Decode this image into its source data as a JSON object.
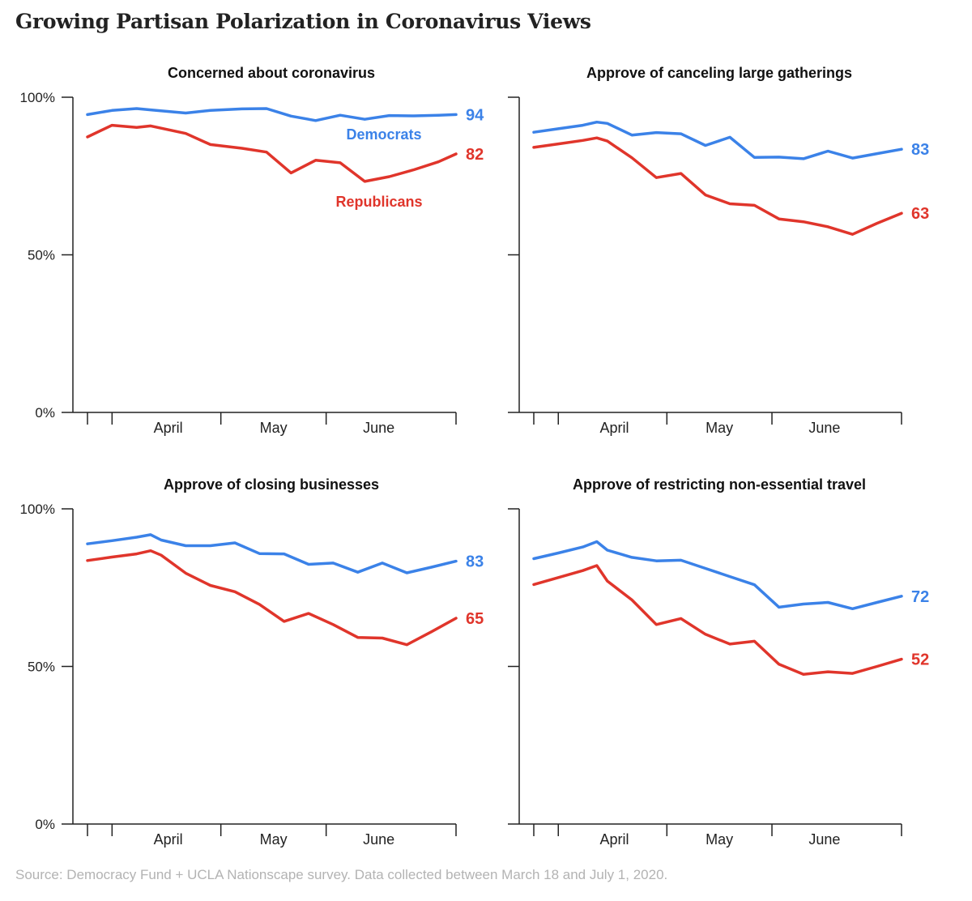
{
  "page": {
    "title": "Growing Partisan Polarization in Coronavirus Views",
    "source": "Source: Democracy Fund + UCLA Nationscape survey. Data collected between March 18 and July 1, 2020."
  },
  "colors": {
    "democrats": "#3b82e8",
    "republicans": "#e0352b",
    "axis": "#222222"
  },
  "chart_data": [
    {
      "type": "line",
      "title": "Concerned about coronavirus",
      "ylim": [
        0,
        100
      ],
      "y_ticks": [
        "0%",
        "50%",
        "100%"
      ],
      "x_ticks": [
        "April",
        "May",
        "June"
      ],
      "xlim": [
        "2020-03-18",
        "2020-07-01"
      ],
      "legend": "inline labels",
      "grid": false,
      "series_label_text": [
        "Democrats",
        "Republicans"
      ],
      "series": [
        {
          "name": "Democrats",
          "end_label": "94",
          "x": [
            "2020-03-18",
            "2020-03-25",
            "2020-04-01",
            "2020-04-05",
            "2020-04-15",
            "2020-04-22",
            "2020-05-01",
            "2020-05-08",
            "2020-05-15",
            "2020-05-22",
            "2020-05-29",
            "2020-06-05",
            "2020-06-12",
            "2020-06-19",
            "2020-06-26",
            "2020-07-01"
          ],
          "y": [
            94.5,
            95.8,
            96.4,
            96.0,
            95.0,
            95.8,
            96.3,
            96.4,
            94.0,
            92.6,
            94.3,
            93.0,
            94.2,
            94.1,
            94.3,
            94.5
          ]
        },
        {
          "name": "Republicans",
          "end_label": "82",
          "x": [
            "2020-03-18",
            "2020-03-25",
            "2020-04-01",
            "2020-04-05",
            "2020-04-15",
            "2020-04-22",
            "2020-05-01",
            "2020-05-08",
            "2020-05-15",
            "2020-05-22",
            "2020-05-29",
            "2020-06-05",
            "2020-06-12",
            "2020-06-19",
            "2020-06-26",
            "2020-07-01"
          ],
          "y": [
            87.4,
            91.1,
            90.4,
            90.9,
            88.5,
            85.0,
            83.8,
            82.6,
            76.0,
            80.0,
            79.2,
            73.3,
            74.8,
            77.0,
            79.5,
            82.0
          ]
        }
      ]
    },
    {
      "type": "line",
      "title": "Approve of canceling large gatherings",
      "ylim": [
        0,
        100
      ],
      "y_ticks": [
        "0%",
        "50%",
        "100%"
      ],
      "x_ticks": [
        "April",
        "May",
        "June"
      ],
      "xlim": [
        "2020-03-18",
        "2020-07-01"
      ],
      "legend": "none",
      "grid": false,
      "series": [
        {
          "name": "Democrats",
          "end_label": "83",
          "x": [
            "2020-03-18",
            "2020-03-25",
            "2020-04-01",
            "2020-04-05",
            "2020-04-08",
            "2020-04-15",
            "2020-04-22",
            "2020-04-29",
            "2020-05-06",
            "2020-05-13",
            "2020-05-20",
            "2020-05-27",
            "2020-06-03",
            "2020-06-10",
            "2020-06-17",
            "2020-06-24",
            "2020-07-01"
          ],
          "y": [
            88.9,
            90.0,
            91.1,
            92.1,
            91.7,
            88.0,
            88.8,
            88.4,
            84.7,
            87.3,
            80.9,
            81.0,
            80.5,
            82.9,
            80.7,
            82.1,
            83.5
          ]
        },
        {
          "name": "Republicans",
          "end_label": "63",
          "x": [
            "2020-03-18",
            "2020-03-25",
            "2020-04-01",
            "2020-04-05",
            "2020-04-08",
            "2020-04-15",
            "2020-04-22",
            "2020-04-29",
            "2020-05-06",
            "2020-05-13",
            "2020-05-20",
            "2020-05-27",
            "2020-06-03",
            "2020-06-10",
            "2020-06-17",
            "2020-06-24",
            "2020-07-01"
          ],
          "y": [
            84.1,
            85.2,
            86.3,
            87.1,
            86.1,
            80.8,
            74.5,
            75.8,
            69.0,
            66.2,
            65.7,
            61.4,
            60.5,
            58.9,
            56.5,
            60.0,
            63.2
          ]
        }
      ]
    },
    {
      "type": "line",
      "title": "Approve of closing businesses",
      "ylim": [
        0,
        100
      ],
      "y_ticks": [
        "0%",
        "50%",
        "100%"
      ],
      "x_ticks": [
        "April",
        "May",
        "June"
      ],
      "xlim": [
        "2020-03-18",
        "2020-07-01"
      ],
      "legend": "none",
      "grid": false,
      "series": [
        {
          "name": "Democrats",
          "end_label": "83",
          "x": [
            "2020-03-18",
            "2020-03-25",
            "2020-04-01",
            "2020-04-05",
            "2020-04-08",
            "2020-04-15",
            "2020-04-22",
            "2020-04-29",
            "2020-05-06",
            "2020-05-13",
            "2020-05-20",
            "2020-05-27",
            "2020-06-03",
            "2020-06-10",
            "2020-06-17",
            "2020-06-24",
            "2020-07-01"
          ],
          "y": [
            88.9,
            89.9,
            91.0,
            91.8,
            90.1,
            88.3,
            88.3,
            89.2,
            85.8,
            85.7,
            82.4,
            82.8,
            79.9,
            82.8,
            79.7,
            81.5,
            83.4
          ]
        },
        {
          "name": "Republicans",
          "end_label": "65",
          "x": [
            "2020-03-18",
            "2020-03-25",
            "2020-04-01",
            "2020-04-05",
            "2020-04-08",
            "2020-04-15",
            "2020-04-22",
            "2020-04-29",
            "2020-05-06",
            "2020-05-13",
            "2020-05-20",
            "2020-05-27",
            "2020-06-03",
            "2020-06-10",
            "2020-06-17",
            "2020-06-24",
            "2020-07-01"
          ],
          "y": [
            83.6,
            84.7,
            85.7,
            86.7,
            85.3,
            79.6,
            75.7,
            73.7,
            69.7,
            64.3,
            66.8,
            63.3,
            59.2,
            59.0,
            56.9,
            61.0,
            65.3
          ]
        }
      ]
    },
    {
      "type": "line",
      "title": "Approve of restricting non-essential travel",
      "ylim": [
        0,
        100
      ],
      "y_ticks": [
        "0%",
        "50%",
        "100%"
      ],
      "x_ticks": [
        "April",
        "May",
        "June"
      ],
      "xlim": [
        "2020-03-18",
        "2020-07-01"
      ],
      "legend": "none",
      "grid": false,
      "series": [
        {
          "name": "Democrats",
          "end_label": "72",
          "x": [
            "2020-03-18",
            "2020-03-25",
            "2020-04-01",
            "2020-04-05",
            "2020-04-08",
            "2020-04-15",
            "2020-04-22",
            "2020-04-29",
            "2020-05-06",
            "2020-05-13",
            "2020-05-20",
            "2020-05-27",
            "2020-06-03",
            "2020-06-10",
            "2020-06-17",
            "2020-06-24",
            "2020-07-01"
          ],
          "y": [
            84.2,
            86.0,
            87.9,
            89.6,
            86.9,
            84.6,
            83.5,
            83.7,
            81.1,
            78.5,
            75.9,
            68.8,
            69.8,
            70.3,
            68.3,
            70.3,
            72.3
          ]
        },
        {
          "name": "Republicans",
          "end_label": "52",
          "x": [
            "2020-03-18",
            "2020-03-25",
            "2020-04-01",
            "2020-04-05",
            "2020-04-08",
            "2020-04-15",
            "2020-04-22",
            "2020-04-29",
            "2020-05-06",
            "2020-05-13",
            "2020-05-20",
            "2020-05-27",
            "2020-06-03",
            "2020-06-10",
            "2020-06-17",
            "2020-06-24",
            "2020-07-01"
          ],
          "y": [
            76.0,
            78.2,
            80.4,
            82.0,
            77.1,
            71.1,
            63.3,
            65.2,
            60.2,
            57.1,
            58.0,
            50.7,
            47.5,
            48.3,
            47.8,
            50.0,
            52.3
          ]
        }
      ]
    }
  ]
}
